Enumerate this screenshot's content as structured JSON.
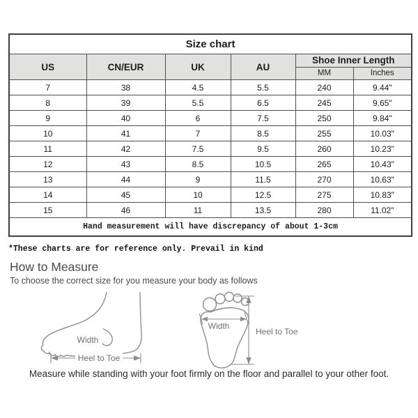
{
  "table": {
    "title": "Size chart",
    "columns": [
      "US",
      "CN/EUR",
      "UK",
      "AU"
    ],
    "group_header": "Shoe Inner Length",
    "sub_columns": [
      "MM",
      "Inches"
    ],
    "rows": [
      [
        "7",
        "38",
        "4.5",
        "5.5",
        "240",
        "9.44\""
      ],
      [
        "8",
        "39",
        "5.5",
        "6.5",
        "245",
        "9.65\""
      ],
      [
        "9",
        "40",
        "6",
        "7.5",
        "250",
        "9.84\""
      ],
      [
        "10",
        "41",
        "7",
        "8.5",
        "255",
        "10.03\""
      ],
      [
        "11",
        "42",
        "7.5",
        "9.5",
        "260",
        "10.23\""
      ],
      [
        "12",
        "43",
        "8.5",
        "10.5",
        "265",
        "10.43\""
      ],
      [
        "13",
        "44",
        "9",
        "11.5",
        "270",
        "10.63\""
      ],
      [
        "14",
        "45",
        "10",
        "12.5",
        "275",
        "10.83\""
      ],
      [
        "15",
        "46",
        "11",
        "13.5",
        "280",
        "11.02\""
      ]
    ],
    "footer_note": "Hand measurement will have discrepancy of about 1-3cm"
  },
  "notes": {
    "reference": "*These charts are for reference only. Prevail in kind"
  },
  "measure_section": {
    "heading": "How to Measure",
    "subheading": "To choose the correct size for you measure your body as follows",
    "side_view": {
      "width_label": "Width",
      "length_label": "Heel to Toe"
    },
    "top_view": {
      "width_label": "Width",
      "length_label": "Heel to Toe"
    },
    "caption": "Measure while standing with your foot firmly on the floor and parallel to your other foot."
  },
  "colors": {
    "header_bg": "#e1e1df",
    "table_border": "#3f3f3f",
    "cell_border": "#4d4d4d",
    "diagram_stroke": "#8c8c8c",
    "diagram_label": "#6f6f6f",
    "text": "#1c1c1c",
    "muted_text": "#4a4a4a"
  }
}
